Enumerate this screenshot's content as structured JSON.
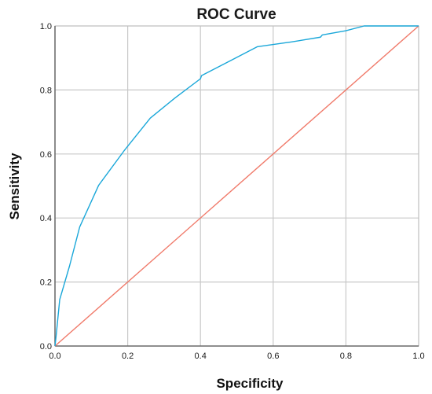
{
  "chart_data": {
    "type": "line",
    "title": "ROC Curve",
    "xlabel": "Specificity",
    "ylabel": "Sensitivity",
    "xlim": [
      0,
      1
    ],
    "ylim": [
      0,
      1
    ],
    "x_ticks": [
      "0.0",
      "0.2",
      "0.4",
      "0.6",
      "0.8",
      "1.0"
    ],
    "y_ticks": [
      "0.0",
      "0.2",
      "0.4",
      "0.6",
      "0.8",
      "1.0"
    ],
    "grid": true,
    "legend": "none",
    "colors": {
      "roc": "#1aa7d9",
      "reference": "#f07a6a"
    },
    "series": [
      {
        "x": [
          0.0,
          0.003,
          0.013,
          0.04,
          0.068,
          0.12,
          0.19,
          0.262,
          0.33,
          0.4,
          0.403,
          0.48,
          0.556,
          0.65,
          0.73,
          0.735,
          0.8,
          0.85,
          0.92,
          0.96,
          1.0
        ],
        "y": [
          0.0,
          0.03,
          0.145,
          0.25,
          0.372,
          0.502,
          0.61,
          0.712,
          0.775,
          0.835,
          0.845,
          0.89,
          0.935,
          0.95,
          0.965,
          0.972,
          0.985,
          1.0,
          1.0,
          1.0,
          1.0
        ]
      },
      {
        "x": [
          0,
          1
        ],
        "y": [
          0,
          1
        ]
      }
    ]
  }
}
